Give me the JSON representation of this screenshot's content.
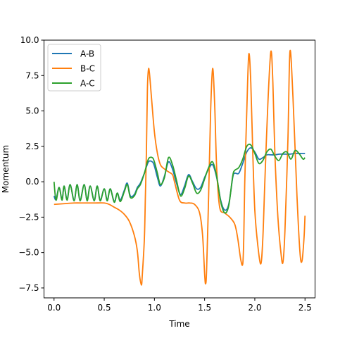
{
  "chart_data": {
    "type": "line",
    "title": "",
    "xlabel": "Time",
    "ylabel": "Momentum",
    "xlim": [
      -0.1,
      2.6
    ],
    "ylim": [
      -8.2,
      10.0
    ],
    "xticks": [
      0.0,
      0.5,
      1.0,
      1.5,
      2.0,
      2.5
    ],
    "xtick_labels": [
      "0.0",
      "0.5",
      "1.0",
      "1.5",
      "2.0",
      "2.5"
    ],
    "yticks": [
      -7.5,
      -5.0,
      -2.5,
      0.0,
      2.5,
      5.0,
      7.5,
      10.0
    ],
    "ytick_labels": [
      "−7.5",
      "−5.0",
      "−2.5",
      "0.0",
      "2.5",
      "5.0",
      "7.5",
      "10.0"
    ],
    "grid": false,
    "legend_position": "upper left",
    "series": [
      {
        "name": "A-B",
        "color": "#1f77b4",
        "x": [
          0.0,
          0.02,
          0.05,
          0.08,
          0.1,
          0.13,
          0.16,
          0.2,
          0.23,
          0.26,
          0.3,
          0.33,
          0.36,
          0.4,
          0.43,
          0.46,
          0.5,
          0.53,
          0.56,
          0.6,
          0.63,
          0.66,
          0.7,
          0.73,
          0.76,
          0.8,
          0.83,
          0.86,
          0.9,
          0.94,
          0.98,
          1.0,
          1.03,
          1.06,
          1.1,
          1.14,
          1.18,
          1.22,
          1.26,
          1.3,
          1.34,
          1.38,
          1.42,
          1.46,
          1.5,
          1.54,
          1.58,
          1.62,
          1.66,
          1.7,
          1.74,
          1.78,
          1.8,
          1.84,
          1.88,
          1.92,
          1.96,
          2.0,
          2.04,
          2.08,
          2.12,
          2.16,
          2.2,
          2.25,
          2.3,
          2.35,
          2.4,
          2.45,
          2.5
        ],
        "values": [
          -1.0,
          -1.25,
          -0.4,
          -1.25,
          -0.3,
          -1.25,
          -0.2,
          -1.3,
          -0.2,
          -1.3,
          -0.2,
          -1.3,
          -0.3,
          -1.3,
          -0.3,
          -1.3,
          -0.5,
          -1.3,
          -0.5,
          -1.4,
          -0.8,
          -1.3,
          -0.6,
          -0.1,
          -1.0,
          -0.9,
          -0.4,
          -0.1,
          0.6,
          1.4,
          1.4,
          1.1,
          0.3,
          -0.3,
          0.4,
          1.4,
          0.9,
          -0.1,
          -0.9,
          -0.3,
          0.5,
          0.0,
          -0.5,
          -0.4,
          0.3,
          0.9,
          1.2,
          0.3,
          -1.3,
          -2.0,
          -1.6,
          0.3,
          0.6,
          0.6,
          1.3,
          2.1,
          2.4,
          2.1,
          1.6,
          1.7,
          1.9,
          1.9,
          1.9,
          1.95,
          1.95,
          1.95,
          2.0,
          2.0,
          2.0
        ]
      },
      {
        "name": "B-C",
        "color": "#ff7f0e",
        "x": [
          0.0,
          0.1,
          0.2,
          0.3,
          0.4,
          0.5,
          0.55,
          0.6,
          0.65,
          0.7,
          0.75,
          0.8,
          0.83,
          0.85,
          0.87,
          0.88,
          0.9,
          0.91,
          0.92,
          0.93,
          0.94,
          0.95,
          0.97,
          1.0,
          1.03,
          1.06,
          1.1,
          1.14,
          1.18,
          1.2,
          1.25,
          1.3,
          1.35,
          1.4,
          1.45,
          1.48,
          1.5,
          1.51,
          1.52,
          1.54,
          1.56,
          1.58,
          1.6,
          1.62,
          1.65,
          1.7,
          1.75,
          1.8,
          1.83,
          1.86,
          1.88,
          1.89,
          1.9,
          1.92,
          1.94,
          1.96,
          1.98,
          2.0,
          2.03,
          2.06,
          2.08,
          2.1,
          2.13,
          2.16,
          2.18,
          2.2,
          2.23,
          2.26,
          2.28,
          2.3,
          2.33,
          2.35,
          2.38,
          2.42,
          2.45,
          2.47,
          2.49,
          2.5
        ],
        "values": [
          -1.6,
          -1.55,
          -1.5,
          -1.5,
          -1.5,
          -1.5,
          -1.6,
          -1.8,
          -2.0,
          -2.3,
          -2.8,
          -3.8,
          -4.9,
          -6.5,
          -7.3,
          -6.5,
          -4.0,
          -1.0,
          2.0,
          6.5,
          7.9,
          7.7,
          6.0,
          3.5,
          2.0,
          1.2,
          0.9,
          0.7,
          0.5,
          0.0,
          -1.3,
          -1.5,
          -1.5,
          -1.6,
          -2.2,
          -3.8,
          -6.5,
          -7.2,
          -6.2,
          -1.0,
          5.0,
          8.0,
          5.5,
          1.0,
          -1.8,
          -2.2,
          -2.5,
          -3.0,
          -4.0,
          -5.5,
          -5.8,
          -4.0,
          0.0,
          5.0,
          9.0,
          7.0,
          2.0,
          -2.0,
          -4.5,
          -5.8,
          -4.0,
          0.0,
          5.5,
          9.2,
          7.0,
          2.0,
          -2.5,
          -5.0,
          -5.7,
          -3.5,
          3.0,
          9.2,
          6.0,
          -1.0,
          -5.0,
          -5.6,
          -4.0,
          -2.4
        ]
      },
      {
        "name": "A-C",
        "color": "#2ca02c",
        "x": [
          0.0,
          0.02,
          0.05,
          0.08,
          0.1,
          0.13,
          0.16,
          0.2,
          0.23,
          0.26,
          0.3,
          0.33,
          0.36,
          0.4,
          0.43,
          0.46,
          0.5,
          0.53,
          0.56,
          0.6,
          0.63,
          0.66,
          0.7,
          0.73,
          0.76,
          0.8,
          0.83,
          0.86,
          0.9,
          0.94,
          0.98,
          1.0,
          1.03,
          1.06,
          1.1,
          1.14,
          1.18,
          1.22,
          1.26,
          1.3,
          1.34,
          1.38,
          1.42,
          1.46,
          1.5,
          1.54,
          1.58,
          1.62,
          1.66,
          1.7,
          1.74,
          1.78,
          1.8,
          1.84,
          1.88,
          1.92,
          1.96,
          2.0,
          2.04,
          2.08,
          2.12,
          2.16,
          2.2,
          2.24,
          2.28,
          2.32,
          2.36,
          2.4,
          2.44,
          2.48,
          2.5
        ],
        "values": [
          0.0,
          -1.3,
          -0.4,
          -1.3,
          -0.3,
          -1.3,
          -0.2,
          -1.35,
          -0.2,
          -1.35,
          -0.2,
          -1.35,
          -0.3,
          -1.35,
          -0.3,
          -1.35,
          -0.5,
          -1.35,
          -0.5,
          -1.45,
          -0.8,
          -1.4,
          -0.7,
          -0.2,
          -1.1,
          -1.0,
          -0.5,
          -0.2,
          0.6,
          1.6,
          1.7,
          1.4,
          0.6,
          -0.2,
          0.3,
          1.7,
          1.2,
          0.1,
          -1.0,
          -0.5,
          0.4,
          -0.1,
          -0.8,
          -0.6,
          0.2,
          1.0,
          1.4,
          0.4,
          -1.4,
          -2.2,
          -1.7,
          0.4,
          0.8,
          1.0,
          1.6,
          2.5,
          2.6,
          2.0,
          1.3,
          1.5,
          2.1,
          2.3,
          1.8,
          1.5,
          2.0,
          2.1,
          1.6,
          2.2,
          2.0,
          1.6,
          1.7
        ]
      }
    ]
  }
}
